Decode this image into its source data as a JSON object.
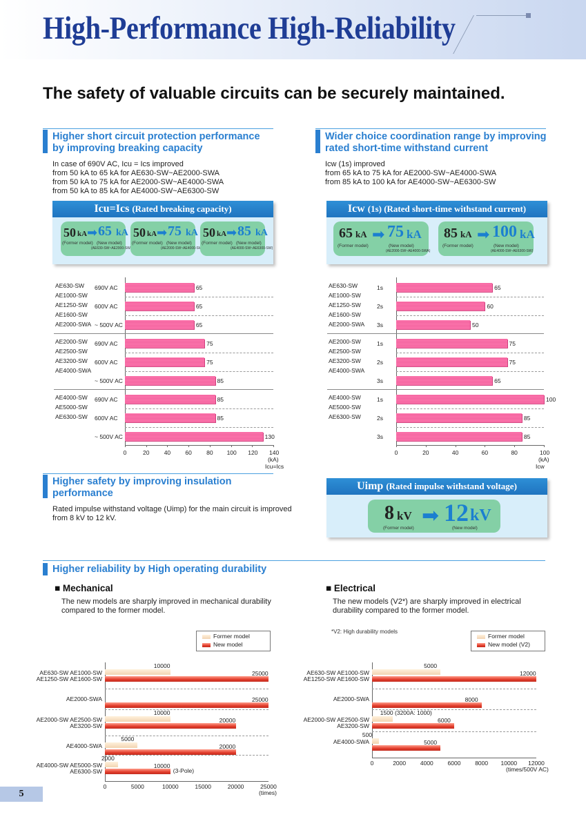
{
  "header": {
    "title": "High-Performance  High-Reliability"
  },
  "subtitle": "The safety of valuable circuits can be securely maintained.",
  "sections": {
    "breaking": {
      "title": "Higher short circuit protection performance\nby improving breaking capacity",
      "body": "In case of 690V AC, Icu = Ics improved\nfrom 50 kA to 65 kA for AE630-SW~AE2000-SWA\nfrom 50 kA to 75 kA for AE2000-SW~AE4000-SWA\nfrom 50 kA to 85 kA for AE4000-SW~AE6300-SW",
      "panel_title": "Icu=Ics",
      "panel_sub": "(Rated breaking capacity)",
      "pills": [
        {
          "old": "50",
          "new": "65",
          "unit": "kA",
          "old_cap": "(Former model)",
          "new_cap": "(New model)",
          "range": "(AE630-SW~AE2000-SWA)"
        },
        {
          "old": "50",
          "new": "75",
          "unit": "kA",
          "old_cap": "(Former model)",
          "new_cap": "(New model)",
          "range": "(AE2000-SW~AE4000-SWA)"
        },
        {
          "old": "50",
          "new": "85",
          "unit": "kA",
          "old_cap": "(Former model)",
          "new_cap": "(New model)",
          "range": "(AE4000-SW~AE6300-SW)"
        }
      ]
    },
    "withstand": {
      "title": "Wider choice coordination range by improving\nrated short-time withstand current",
      "body": "Icw (1s) improved\nfrom 65 kA to 75 kA for AE2000-SW~AE4000-SWA\nfrom 85 kA to 100 kA for AE4000-SW~AE6300-SW",
      "panel_title": "Icw",
      "panel_sub": "(1s) (Rated short-time withstand current)",
      "pills": [
        {
          "old": "65",
          "new": "75",
          "unit": "kA",
          "old_cap": "(Former model)",
          "new_cap": "(New model)",
          "range": "(AE2000-SW~AE4000-SWA)"
        },
        {
          "old": "85",
          "new": "100",
          "unit": "kA",
          "old_cap": "(Former model)",
          "new_cap": "(New model)",
          "range": "(AE4000-SW~AE6300-SW)"
        }
      ]
    },
    "insulation": {
      "title": "Higher safety by improving insulation\nperformance",
      "body": "Rated impulse withstand voltage (Uimp) for the main circuit is improved\nfrom 8 kV to 12 kV.",
      "panel_title": "Uimp",
      "panel_sub": "(Rated impulse withstand voltage)",
      "old": "8",
      "new": "12",
      "unit": "kV",
      "old_cap": "(Former model)",
      "new_cap": "(New model)"
    },
    "durability": {
      "title": "Higher reliability by High operating durability",
      "mech_head": "Mechanical",
      "mech_body": "The new models are sharply improved in mechanical durability\ncompared to the former model.",
      "elec_head": "Electrical",
      "elec_body": "The new models (V2*) are sharply improved in electrical\ndurability compared to the former model.",
      "elec_note": "*V2: High durability models"
    }
  },
  "chart_data": [
    {
      "type": "bar",
      "orientation": "horizontal",
      "groups": [
        "AE630-SW / AE1000-SW / AE1250-SW / AE1600-SW / AE2000-SWA",
        "AE2000-SW / AE2500-SW / AE3200-SW / AE4000-SWA",
        "AE4000-SW / AE5000-SW / AE6300-SW"
      ],
      "categories": [
        "690V AC",
        "600V AC",
        "~ 500V AC"
      ],
      "values": [
        [
          65,
          65,
          65
        ],
        [
          75,
          75,
          85
        ],
        [
          85,
          85,
          130
        ]
      ],
      "xlim": [
        0,
        140
      ],
      "xticks": [
        0,
        20,
        40,
        60,
        80,
        100,
        120,
        140
      ],
      "xlabel": "(kA)\nIcu=Ics"
    },
    {
      "type": "bar",
      "orientation": "horizontal",
      "groups": [
        "AE630-SW / AE1000-SW / AE1250-SW / AE1600-SW / AE2000-SWA",
        "AE2000-SW / AE2500-SW / AE3200-SW / AE4000-SWA",
        "AE4000-SW / AE5000-SW / AE6300-SW"
      ],
      "categories": [
        "1s",
        "2s",
        "3s"
      ],
      "values": [
        [
          65,
          60,
          50
        ],
        [
          75,
          75,
          65
        ],
        [
          100,
          85,
          85
        ]
      ],
      "xlim": [
        0,
        100
      ],
      "xticks": [
        0,
        20,
        40,
        60,
        80,
        100
      ],
      "xlabel": "(kA)\nIcw"
    },
    {
      "type": "bar",
      "orientation": "horizontal",
      "categories": [
        "AE630-SW AE1000-SW AE1250-SW AE1600-SW",
        "AE2000-SWA",
        "AE2000-SW AE2500-SW AE3200-SW",
        "AE4000-SWA",
        "AE4000-SW AE5000-SW AE6300-SW"
      ],
      "series": [
        {
          "name": "Former model",
          "values": [
            10000,
            null,
            10000,
            5000,
            2000
          ]
        },
        {
          "name": "New model",
          "values": [
            25000,
            25000,
            20000,
            20000,
            10000
          ]
        }
      ],
      "xlim": [
        0,
        25000
      ],
      "xticks": [
        0,
        5000,
        10000,
        15000,
        20000,
        25000
      ],
      "xlabel": "(times)",
      "annotation": "(3-Pole)"
    },
    {
      "type": "bar",
      "orientation": "horizontal",
      "categories": [
        "AE630-SW AE1000-SW AE1250-SW AE1600-SW",
        "AE2000-SWA",
        "AE2000-SW AE2500-SW AE3200-SW",
        "AE4000-SWA"
      ],
      "series": [
        {
          "name": "Former model",
          "values": [
            5000,
            null,
            1500,
            500
          ]
        },
        {
          "name": "New model (V2)",
          "values": [
            12000,
            8000,
            6000,
            5000
          ]
        }
      ],
      "value_labels_former": [
        "5000",
        "",
        "1500 (3200A: 1000)",
        "500"
      ],
      "xlim": [
        0,
        12000
      ],
      "xticks": [
        0,
        2000,
        4000,
        6000,
        8000,
        10000,
        12000
      ],
      "xlabel": "(times/500V AC)"
    }
  ],
  "page_number": "5"
}
